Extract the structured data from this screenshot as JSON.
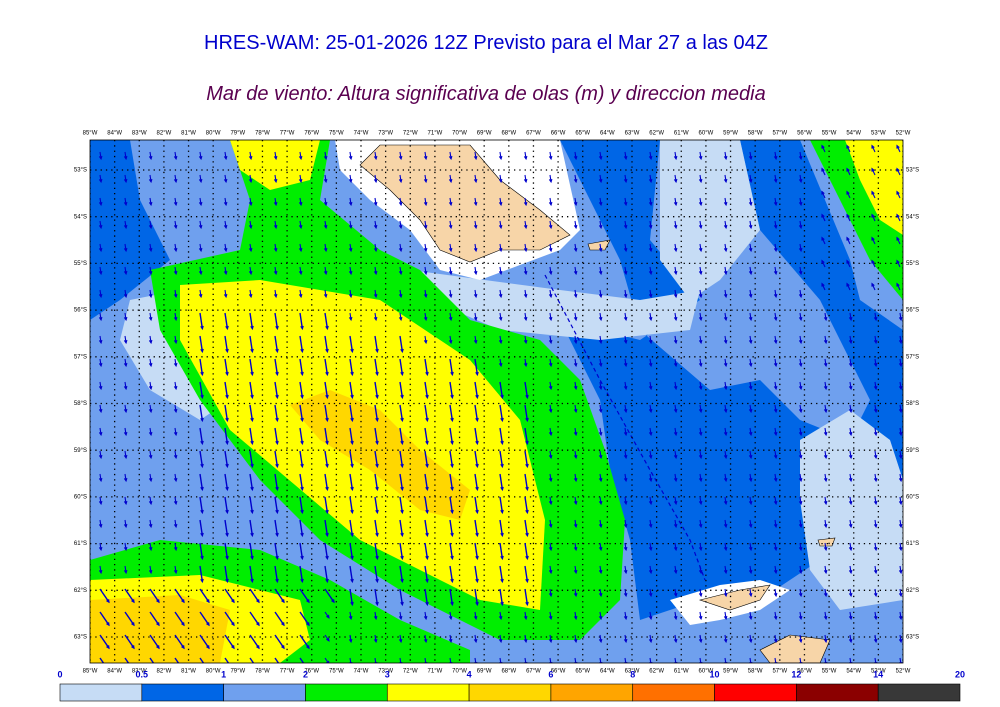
{
  "header": {
    "title": "HRES-WAM: 25-01-2026 12Z Previsto para el Mar 27 a las 04Z",
    "subtitle": "Mar de viento: Altura significativa de olas (m) y direccion media"
  },
  "map": {
    "lon_labels": [
      "85°W",
      "84°W",
      "83°W",
      "82°W",
      "81°W",
      "80°W",
      "79°W",
      "78°W",
      "77°W",
      "76°W",
      "75°W",
      "74°W",
      "73°W",
      "72°W",
      "71°W",
      "70°W",
      "69°W",
      "68°W",
      "67°W",
      "66°W",
      "65°W",
      "64°W",
      "63°W",
      "62°W",
      "61°W",
      "60°W",
      "59°W",
      "58°W",
      "57°W",
      "56°W",
      "55°W",
      "54°W",
      "53°W",
      "52°W"
    ],
    "lat_labels": [
      "53°S",
      "54°S",
      "55°S",
      "56°S",
      "57°S",
      "58°S",
      "59°S",
      "60°S",
      "61°S",
      "62°S",
      "63°S"
    ]
  },
  "colorbar": {
    "ticks": [
      0,
      0.5,
      1,
      2,
      3,
      4,
      6,
      8,
      10,
      12,
      14,
      20
    ],
    "colors": [
      "#c6dcf5",
      "#0066e6",
      "#6fa0ee",
      "#00ee00",
      "#ffff00",
      "#ffd700",
      "#ffa500",
      "#ff7000",
      "#ff0000",
      "#8b0000",
      "#383838"
    ]
  }
}
